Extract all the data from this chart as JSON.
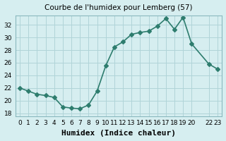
{
  "x": [
    0,
    1,
    2,
    3,
    4,
    5,
    6,
    7,
    8,
    9,
    10,
    11,
    12,
    13,
    14,
    15,
    16,
    17,
    18,
    19,
    20,
    22,
    23
  ],
  "y": [
    22,
    21.5,
    21,
    20.8,
    20.5,
    19,
    18.8,
    18.7,
    19.3,
    21.5,
    25.5,
    28.5,
    29.3,
    30.5,
    30.8,
    31,
    31.8,
    33,
    31.3,
    33.2,
    29,
    25.8,
    25
  ],
  "title": "Courbe de l'humidex pour Lemberg (57)",
  "xlabel": "Humidex (Indice chaleur)",
  "xlim": [
    -0.5,
    23.5
  ],
  "ylim": [
    17.5,
    33.5
  ],
  "yticks": [
    18,
    20,
    22,
    24,
    26,
    28,
    30,
    32
  ],
  "xtick_positions": [
    0,
    1,
    2,
    3,
    4,
    5,
    6,
    7,
    8,
    9,
    10,
    11,
    12,
    13,
    14,
    15,
    16,
    17,
    18,
    19,
    20,
    22,
    23
  ],
  "xtick_labels": [
    "0",
    "1",
    "2",
    "3",
    "4",
    "5",
    "6",
    "7",
    "8",
    "9",
    "10",
    "11",
    "12",
    "13",
    "14",
    "15",
    "16",
    "17",
    "18",
    "19",
    "20",
    "22",
    "23"
  ],
  "line_color": "#2e7d6e",
  "marker": "D",
  "marker_size": 3,
  "bg_color": "#d6eef0",
  "grid_color": "#b0d4d8",
  "title_fontsize": 7.5,
  "label_fontsize": 8,
  "tick_fontsize": 6.5
}
